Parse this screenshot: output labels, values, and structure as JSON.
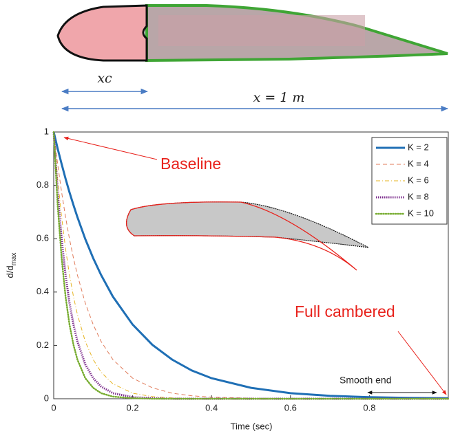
{
  "diagram": {
    "chord_fraction_label": "xc",
    "chord_label": "x = 1 m"
  },
  "chart_data": {
    "type": "line",
    "xlabel": "Time (sec)",
    "ylabel_main": "d/d",
    "ylabel_sub": "max",
    "annotations": [
      "Baseline",
      "Full cambered",
      "Smooth end"
    ],
    "xlim": [
      0,
      1
    ],
    "ylim": [
      0,
      1
    ],
    "xticks": [
      0,
      0.2,
      0.4,
      0.6,
      0.8
    ],
    "yticks": [
      0,
      0.2,
      0.4,
      0.6,
      0.8,
      1
    ],
    "legend": "top-right",
    "x": [
      0,
      0.01,
      0.02,
      0.03,
      0.04,
      0.05,
      0.06,
      0.08,
      0.1,
      0.12,
      0.15,
      0.2,
      0.25,
      0.3,
      0.35,
      0.4,
      0.5,
      0.6,
      0.7,
      0.8,
      0.9,
      1.0
    ],
    "series": [
      {
        "name": "K = 2",
        "color": "#1f6fb5",
        "width": 3,
        "dash": "solid",
        "values": [
          1,
          0.938,
          0.88,
          0.825,
          0.774,
          0.726,
          0.681,
          0.599,
          0.527,
          0.464,
          0.383,
          0.278,
          0.202,
          0.147,
          0.106,
          0.077,
          0.041,
          0.021,
          0.011,
          0.006,
          0.003,
          0.002
        ]
      },
      {
        "name": "K = 4",
        "color": "#e07b5a",
        "width": 1,
        "dash": "dashed",
        "values": [
          1,
          0.88,
          0.774,
          0.681,
          0.599,
          0.527,
          0.464,
          0.359,
          0.278,
          0.215,
          0.147,
          0.077,
          0.041,
          0.021,
          0.011,
          0.006,
          0.002,
          0,
          0,
          0,
          0,
          0
        ]
      },
      {
        "name": "K = 6",
        "color": "#e6b422",
        "width": 1,
        "dash": "dashdot",
        "values": [
          1,
          0.825,
          0.681,
          0.562,
          0.464,
          0.383,
          0.316,
          0.215,
          0.147,
          0.1,
          0.056,
          0.021,
          0.008,
          0.003,
          0.001,
          0,
          0,
          0,
          0,
          0,
          0,
          0
        ]
      },
      {
        "name": "K = 8",
        "color": "#7e2f8e",
        "width": 3,
        "dash": "dotted",
        "values": [
          1,
          0.774,
          0.599,
          0.464,
          0.359,
          0.278,
          0.215,
          0.129,
          0.077,
          0.046,
          0.021,
          0.006,
          0.002,
          0,
          0,
          0,
          0,
          0,
          0,
          0,
          0,
          0
        ]
      },
      {
        "name": "K = 10",
        "color": "#77ac30",
        "width": 2.5,
        "dash": "points",
        "values": [
          1,
          0.726,
          0.527,
          0.383,
          0.278,
          0.202,
          0.147,
          0.077,
          0.041,
          0.021,
          0.008,
          0.002,
          0,
          0,
          0,
          0,
          0,
          0,
          0,
          0,
          0,
          0
        ]
      }
    ]
  }
}
